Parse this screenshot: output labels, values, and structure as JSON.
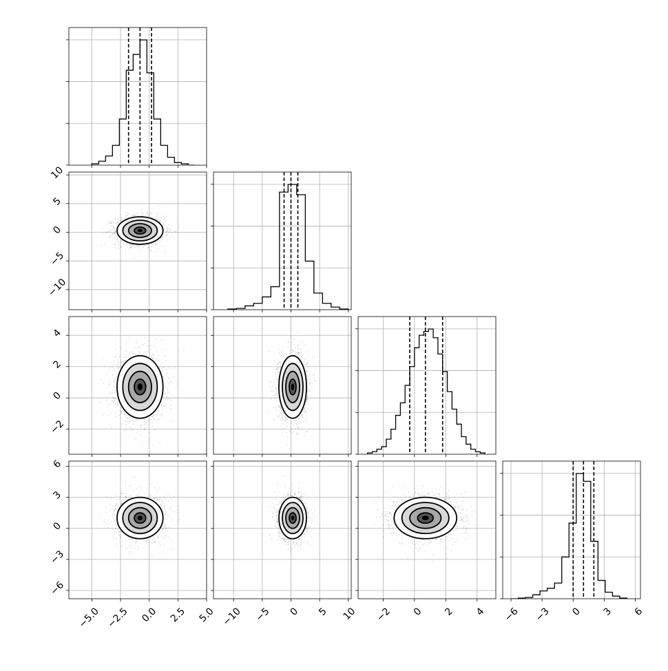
{
  "chart_data": {
    "type": "corner",
    "parameters": [
      {
        "mean": -0.8,
        "std": 1.0,
        "range": [
          -7,
          5
        ],
        "ticks": [
          -5.0,
          -2.5,
          0.0,
          2.5,
          5.0
        ],
        "tick_labels": [
          "−5.0",
          "−2.5",
          "0.0",
          "2.5",
          "5.0"
        ],
        "quantiles": [
          -1.8,
          -0.8,
          0.2
        ]
      },
      {
        "mean": 0.3,
        "std": 1.2,
        "range": [
          -13.5,
          10.5
        ],
        "ticks": [
          -10,
          -5,
          0,
          5,
          10
        ],
        "tick_labels": [
          "−10",
          "−5",
          "0",
          "5",
          "10"
        ],
        "quantiles": [
          -1.2,
          0.0,
          1.2
        ]
      },
      {
        "mean": 0.7,
        "std": 1.0,
        "range": [
          -3.6,
          5.2
        ],
        "ticks": [
          -2,
          0,
          2,
          4
        ],
        "tick_labels": [
          "−2",
          "0",
          "2",
          "4"
        ],
        "quantiles": [
          -0.3,
          0.7,
          1.8
        ]
      },
      {
        "mean": 1.0,
        "std": 1.0,
        "range": [
          -6.8,
          6.5
        ],
        "ticks": [
          -6,
          -3,
          0,
          3,
          6
        ],
        "tick_labels": [
          "−6",
          "−3",
          "0",
          "3",
          "6"
        ],
        "quantiles": [
          0.0,
          1.0,
          2.0
        ]
      }
    ],
    "diagonal_histograms": [
      {
        "bin_edges": [
          -5.0,
          -4.4,
          -3.8,
          -3.2,
          -2.6,
          -2.0,
          -1.4,
          -0.8,
          -0.2,
          0.4,
          1.0,
          1.6,
          2.2,
          2.8,
          3.4,
          4.0
        ],
        "counts": [
          0.01,
          0.03,
          0.07,
          0.15,
          0.35,
          0.72,
          0.84,
          0.95,
          0.7,
          0.35,
          0.15,
          0.06,
          0.02,
          0.01,
          0.0
        ]
      },
      {
        "bin_edges": [
          -11.0,
          -9.5,
          -8.0,
          -6.5,
          -5.0,
          -3.5,
          -2.0,
          -0.5,
          1.0,
          2.5,
          4.0,
          5.5,
          7.0,
          8.5,
          10.0
        ],
        "counts": [
          0.005,
          0.01,
          0.03,
          0.05,
          0.1,
          0.18,
          0.92,
          0.98,
          0.9,
          0.38,
          0.13,
          0.05,
          0.02,
          0.005
        ]
      },
      {
        "bin_edges": [
          -3.0,
          -2.7,
          -2.4,
          -2.1,
          -1.8,
          -1.5,
          -1.2,
          -0.9,
          -0.6,
          -0.3,
          0.0,
          0.3,
          0.6,
          0.9,
          1.2,
          1.5,
          1.8,
          2.1,
          2.4,
          2.7,
          3.0,
          3.3,
          3.6,
          3.9,
          4.2,
          4.5
        ],
        "counts": [
          0.01,
          0.02,
          0.04,
          0.06,
          0.12,
          0.2,
          0.31,
          0.41,
          0.55,
          0.7,
          0.85,
          0.95,
          0.98,
          1.0,
          0.93,
          0.8,
          0.66,
          0.5,
          0.36,
          0.24,
          0.14,
          0.08,
          0.04,
          0.02,
          0.01
        ]
      },
      {
        "bin_edges": [
          -6.0,
          -5.3,
          -4.6,
          -3.9,
          -3.2,
          -2.5,
          -1.8,
          -1.1,
          -0.4,
          0.3,
          1.0,
          1.7,
          2.4,
          3.1,
          3.8,
          4.5,
          5.2
        ],
        "counts": [
          0.0,
          0.005,
          0.01,
          0.03,
          0.06,
          0.08,
          0.12,
          0.32,
          0.58,
          0.96,
          0.9,
          0.44,
          0.14,
          0.05,
          0.02,
          0.005
        ]
      }
    ],
    "scatter_points_per_panel": 1800,
    "grid": true
  }
}
